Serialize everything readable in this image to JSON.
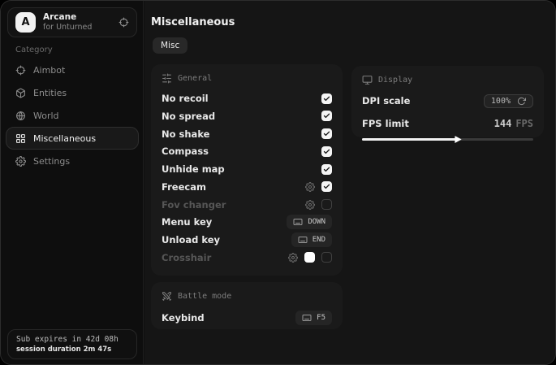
{
  "brand": {
    "initial": "A",
    "name": "Arcane",
    "subtitle": "for Unturned"
  },
  "sidebar": {
    "category_label": "Category",
    "items": [
      {
        "label": "Aimbot",
        "icon": "crosshair-icon",
        "selected": false
      },
      {
        "label": "Entities",
        "icon": "box-icon",
        "selected": false
      },
      {
        "label": "World",
        "icon": "globe-icon",
        "selected": false
      },
      {
        "label": "Miscellaneous",
        "icon": "grid-icon",
        "selected": true
      },
      {
        "label": "Settings",
        "icon": "gear-icon",
        "selected": false
      }
    ],
    "footer": {
      "expiry": "Sub expires in 42d 08h",
      "session": "session duration 2m 47s"
    }
  },
  "main": {
    "title": "Miscellaneous",
    "tab_label": "Misc",
    "general": {
      "header": "General",
      "rows": [
        {
          "label": "No recoil",
          "control": "checkbox",
          "checked": true
        },
        {
          "label": "No spread",
          "control": "checkbox",
          "checked": true
        },
        {
          "label": "No shake",
          "control": "checkbox",
          "checked": true
        },
        {
          "label": "Compass",
          "control": "checkbox",
          "checked": true
        },
        {
          "label": "Unhide map",
          "control": "checkbox",
          "checked": true
        },
        {
          "label": "Freecam",
          "control": "checkbox",
          "checked": true,
          "has_settings": true
        },
        {
          "label": "Fov changer",
          "control": "checkbox",
          "checked": false,
          "has_settings": true,
          "disabled": true
        },
        {
          "label": "Menu key",
          "control": "keybind",
          "value": "DOWN"
        },
        {
          "label": "Unload key",
          "control": "keybind",
          "value": "END"
        },
        {
          "label": "Crosshair",
          "control": "checkbox",
          "checked": false,
          "has_settings": true,
          "disabled": true,
          "color_swatch": "#ffffff"
        }
      ]
    },
    "battle": {
      "header": "Battle mode",
      "rows": [
        {
          "label": "Keybind",
          "control": "keybind",
          "value": "F5"
        }
      ]
    },
    "display": {
      "header": "Display",
      "dpi_label": "DPI scale",
      "dpi_value": "100%",
      "fps_label": "FPS limit",
      "fps_value": "144",
      "fps_unit": "FPS",
      "fps_slider_percent": 56
    }
  },
  "colors": {
    "checkbox_on": "#f5f5f5",
    "panel_bg": "#1a1a1a",
    "window_bg": "#0e0e0e",
    "main_bg": "#151515"
  }
}
